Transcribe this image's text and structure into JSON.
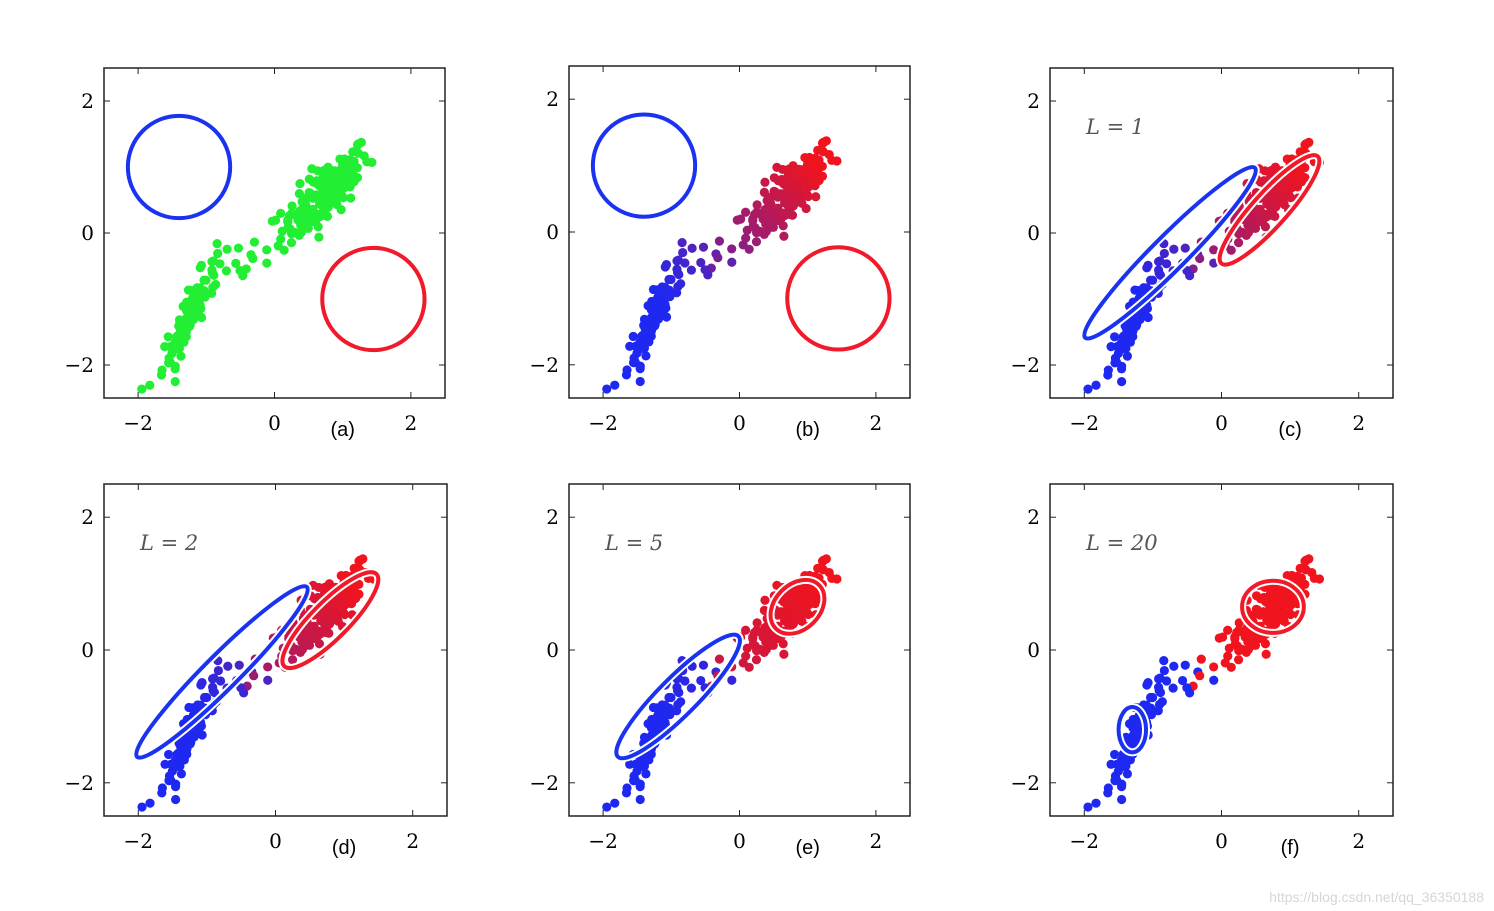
{
  "chart_data": [
    {
      "panel": "a",
      "type": "scatter",
      "label": "(a)",
      "annotation": "",
      "xlim": [
        -2.5,
        2.5
      ],
      "ylim": [
        -2.5,
        2.5
      ],
      "xticks": [
        "−2",
        "0",
        "2"
      ],
      "yticks": [
        "2",
        "0",
        "−2"
      ],
      "point_color": "mixed",
      "mix": null,
      "ellipses": [
        {
          "color": "#1a33f0",
          "cx": -1.4,
          "cy": 1.0,
          "rx": 0.75,
          "ry": 0.75,
          "angle": 0
        },
        {
          "color": "#f01a2a",
          "cx": 1.45,
          "cy": -1.0,
          "rx": 0.75,
          "ry": 0.75,
          "angle": 0
        }
      ]
    },
    {
      "panel": "b",
      "type": "scatter",
      "label": "(b)",
      "annotation": "",
      "xlim": [
        -2.5,
        2.5
      ],
      "ylim": [
        -2.5,
        2.5
      ],
      "xticks": [
        "−2",
        "0",
        "2"
      ],
      "yticks": [
        "2",
        "0",
        "−2"
      ],
      "point_color": "mixed",
      "mix": 0.15,
      "ellipses": [
        {
          "color": "#1a33f0",
          "cx": -1.4,
          "cy": 1.0,
          "rx": 0.75,
          "ry": 0.75,
          "angle": 0
        },
        {
          "color": "#f01a2a",
          "cx": 1.45,
          "cy": -1.0,
          "rx": 0.75,
          "ry": 0.75,
          "angle": 0
        }
      ]
    },
    {
      "panel": "c",
      "type": "scatter",
      "label": "(c)",
      "annotation": "L = 1",
      "xlim": [
        -2.5,
        2.5
      ],
      "ylim": [
        -2.5,
        2.5
      ],
      "xticks": [
        "−2",
        "0",
        "2"
      ],
      "yticks": [
        "2",
        "0",
        "−2"
      ],
      "point_color": "mixed",
      "mix": 0.3,
      "ellipses": [
        {
          "color": "#1a33f0",
          "cx": -0.75,
          "cy": -0.3,
          "rx": 1.75,
          "ry": 0.25,
          "angle": 45
        },
        {
          "color": "#f01a2a",
          "cx": 0.7,
          "cy": 0.35,
          "rx": 1.05,
          "ry": 0.25,
          "angle": 48
        }
      ]
    },
    {
      "panel": "d",
      "type": "scatter",
      "label": "(d)",
      "annotation": "L = 2",
      "xlim": [
        -2.5,
        2.5
      ],
      "ylim": [
        -2.5,
        2.5
      ],
      "xticks": [
        "−2",
        "0",
        "2"
      ],
      "yticks": [
        "2",
        "0",
        "−2"
      ],
      "point_color": "mixed",
      "mix": 0.4,
      "ellipses": [
        {
          "color": "#1a33f0",
          "cx": -0.78,
          "cy": -0.33,
          "rx": 1.75,
          "ry": 0.25,
          "angle": 45
        },
        {
          "color": "#f01a2a",
          "cx": 0.8,
          "cy": 0.45,
          "rx": 0.95,
          "ry": 0.27,
          "angle": 45
        }
      ]
    },
    {
      "panel": "e",
      "type": "scatter",
      "label": "(e)",
      "annotation": "L = 5",
      "xlim": [
        -2.5,
        2.5
      ],
      "ylim": [
        -2.5,
        2.5
      ],
      "xticks": [
        "−2",
        "0",
        "2"
      ],
      "yticks": [
        "2",
        "0",
        "−2"
      ],
      "point_color": "mixed",
      "mix": 0.7,
      "ellipses": [
        {
          "color": "#1a33f0",
          "cx": -0.9,
          "cy": -0.7,
          "rx": 1.25,
          "ry": 0.28,
          "angle": 45
        },
        {
          "color": "#f01a2a",
          "cx": 0.85,
          "cy": 0.65,
          "rx": 0.45,
          "ry": 0.33,
          "angle": 45
        }
      ]
    },
    {
      "panel": "f",
      "type": "scatter",
      "label": "(f)",
      "annotation": "L = 20",
      "xlim": [
        -2.5,
        2.5
      ],
      "ylim": [
        -2.5,
        2.5
      ],
      "xticks": [
        "−2",
        "0",
        "2"
      ],
      "yticks": [
        "2",
        "0",
        "−2"
      ],
      "point_color": "mixed",
      "mix": 1.0,
      "ellipses": [
        {
          "color": "#1a33f0",
          "cx": -1.3,
          "cy": -1.2,
          "rx": 0.2,
          "ry": 0.33,
          "angle": 0
        },
        {
          "color": "#f01a2a",
          "cx": 0.75,
          "cy": 0.65,
          "rx": 0.45,
          "ry": 0.38,
          "angle": 0
        }
      ]
    }
  ],
  "watermark": "https://blog.csdn.net/qq_36350188"
}
